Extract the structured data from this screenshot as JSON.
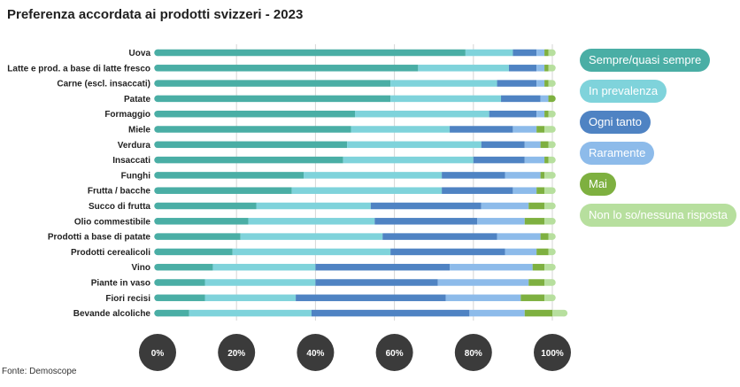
{
  "title": "Preferenza accordata ai prodotti svizzeri - 2023",
  "source": "Fonte: Demoscope",
  "chart_data": {
    "type": "bar",
    "orientation": "horizontal-stacked",
    "categories": [
      "Uova",
      "Latte e prod. a base di latte fresco",
      "Carne (escl. insaccati)",
      "Patate",
      "Formaggio",
      "Miele",
      "Verdura",
      "Insaccati",
      "Funghi",
      "Frutta / bacche",
      "Succo di frutta",
      "Olio commestibile",
      "Prodotti a base di patate",
      "Prodotti cerealicoli",
      "Vino",
      "Piante in vaso",
      "Fiori recisi",
      "Bevande alcoliche"
    ],
    "series": [
      {
        "name": "Sempre/quasi sempre",
        "color": "#4aaea5",
        "values": [
          78,
          66,
          59,
          59,
          50,
          49,
          48,
          47,
          37,
          34,
          25,
          23,
          21,
          19,
          14,
          12,
          12,
          8
        ]
      },
      {
        "name": "In prevalenza",
        "color": "#7fd3db",
        "values": [
          12,
          23,
          27,
          28,
          34,
          25,
          34,
          33,
          35,
          38,
          29,
          32,
          36,
          40,
          26,
          28,
          23,
          31
        ]
      },
      {
        "name": "Ogni tanto",
        "color": "#4f83c3",
        "values": [
          6,
          7,
          10,
          10,
          12,
          16,
          11,
          13,
          16,
          18,
          28,
          26,
          29,
          29,
          34,
          31,
          38,
          40
        ]
      },
      {
        "name": "Raramente",
        "color": "#8dbbea",
        "values": [
          2,
          2,
          2,
          2,
          2,
          6,
          4,
          5,
          9,
          6,
          12,
          12,
          11,
          8,
          21,
          23,
          19,
          14
        ]
      },
      {
        "name": "Mai",
        "color": "#7eb040",
        "values": [
          1,
          1,
          1,
          1,
          1,
          2,
          2,
          1,
          1,
          2,
          4,
          5,
          2,
          3,
          3,
          4,
          6,
          7
        ]
      },
      {
        "name": "Non lo so/nessuna risposta",
        "color": "#b7df9e",
        "values": [
          1,
          1,
          1,
          0,
          1,
          2,
          1,
          1,
          2,
          2,
          2,
          2,
          1,
          1,
          2,
          2,
          2,
          3
        ]
      }
    ],
    "xlim": [
      0,
      100
    ],
    "xticks": [
      "0%",
      "20%",
      "40%",
      "60%",
      "80%",
      "100%"
    ],
    "grid": true,
    "legend_position": "right"
  }
}
